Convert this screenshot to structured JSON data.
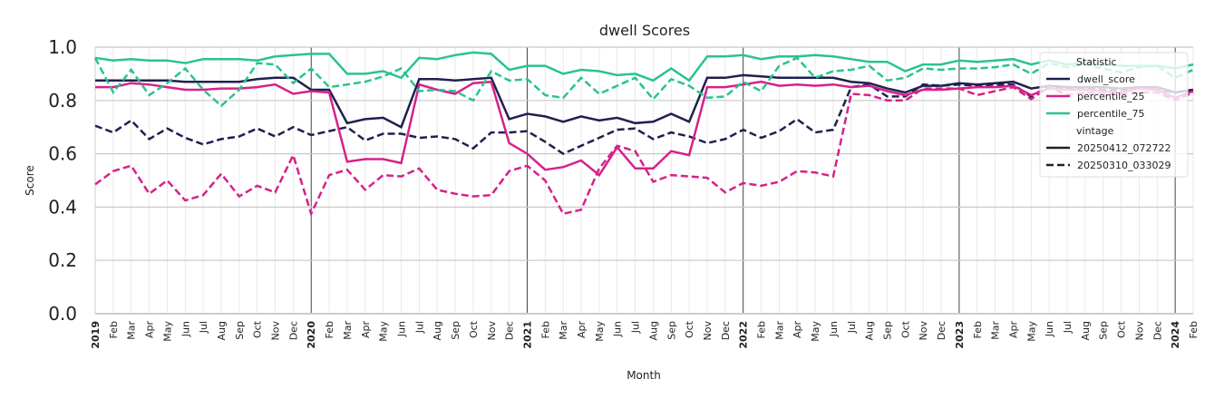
{
  "chart_data": {
    "type": "line",
    "title": "dwell Scores",
    "x_label": "Month",
    "y_label": "Score",
    "categories": [
      "2019",
      "Feb",
      "Mar",
      "Apr",
      "May",
      "Jun",
      "Jul",
      "Aug",
      "Sep",
      "Oct",
      "Nov",
      "Dec",
      "2020",
      "Feb",
      "Mar",
      "Apr",
      "May",
      "Jun",
      "Jul",
      "Aug",
      "Sep",
      "Oct",
      "Nov",
      "Dec",
      "2021",
      "Feb",
      "Mar",
      "Apr",
      "May",
      "Jun",
      "Jul",
      "Aug",
      "Sep",
      "Oct",
      "Nov",
      "Dec",
      "2022",
      "Feb",
      "Mar",
      "Apr",
      "May",
      "Jun",
      "Jul",
      "Aug",
      "Sep",
      "Oct",
      "Nov",
      "Dec",
      "2023",
      "Feb",
      "Mar",
      "Apr",
      "May",
      "Jun",
      "Jul",
      "Aug",
      "Sep",
      "Oct",
      "Nov",
      "Dec",
      "2024",
      "Feb"
    ],
    "ylim": [
      0,
      1
    ],
    "yticks": [
      {
        "value": 0,
        "label": "0.0"
      },
      {
        "value": 0.2,
        "label": "0.2"
      },
      {
        "value": 0.4,
        "label": "0.4"
      },
      {
        "value": 0.6,
        "label": "0.6"
      },
      {
        "value": 0.8,
        "label": "0.8"
      },
      {
        "value": 1,
        "label": "1.0"
      }
    ],
    "grid": true,
    "legend_titles": {
      "statistic": "Statistic",
      "vintage": "vintage"
    },
    "vintages": [
      {
        "name": "20250412_072722",
        "dash": "solid"
      },
      {
        "name": "20250310_033029",
        "dash": "dashed"
      }
    ],
    "series": [
      {
        "name": "dwell_score",
        "color": "#1f2050",
        "values": [
          [
            0.875,
            0.875,
            0.875,
            0.875,
            0.875,
            0.87,
            0.87,
            0.87,
            0.87,
            0.88,
            0.885,
            0.885,
            0.84,
            0.84,
            0.715,
            0.73,
            0.735,
            0.7,
            0.88,
            0.88,
            0.875,
            0.88,
            0.885,
            0.73,
            0.75,
            0.74,
            0.72,
            0.74,
            0.725,
            0.735,
            0.715,
            0.72,
            0.75,
            0.72,
            0.885,
            0.885,
            0.895,
            0.89,
            0.885,
            0.885,
            0.885,
            0.885,
            0.87,
            0.865,
            0.845,
            0.83,
            0.855,
            0.855,
            0.865,
            0.86,
            0.865,
            0.87,
            0.845,
            0.855,
            0.85,
            0.85,
            0.85,
            0.845,
            0.85,
            0.85,
            0.83,
            0.84
          ],
          [
            0.705,
            0.68,
            0.725,
            0.655,
            0.695,
            0.66,
            0.635,
            0.655,
            0.665,
            0.695,
            0.665,
            0.7,
            0.67,
            0.685,
            0.7,
            0.65,
            0.675,
            0.675,
            0.66,
            0.665,
            0.655,
            0.62,
            0.68,
            0.68,
            0.685,
            0.645,
            0.6,
            0.63,
            0.66,
            0.69,
            0.695,
            0.655,
            0.68,
            0.665,
            0.64,
            0.655,
            0.69,
            0.66,
            0.685,
            0.73,
            0.68,
            0.69,
            0.85,
            0.86,
            0.815,
            0.815,
            0.86,
            0.855,
            0.86,
            0.855,
            0.86,
            0.86,
            0.815,
            0.855,
            0.845,
            0.845,
            0.84,
            0.84,
            0.845,
            0.84,
            0.83,
            0.84
          ]
        ]
      },
      {
        "name": "percentile_25",
        "color": "#d6218a",
        "values": [
          [
            0.85,
            0.85,
            0.865,
            0.86,
            0.85,
            0.84,
            0.84,
            0.845,
            0.845,
            0.85,
            0.86,
            0.825,
            0.835,
            0.83,
            0.57,
            0.58,
            0.58,
            0.565,
            0.86,
            0.84,
            0.825,
            0.865,
            0.87,
            0.64,
            0.6,
            0.54,
            0.55,
            0.575,
            0.52,
            0.625,
            0.545,
            0.545,
            0.61,
            0.595,
            0.85,
            0.85,
            0.86,
            0.87,
            0.855,
            0.86,
            0.855,
            0.86,
            0.85,
            0.855,
            0.835,
            0.82,
            0.84,
            0.84,
            0.845,
            0.85,
            0.85,
            0.855,
            0.82,
            0.845,
            0.84,
            0.84,
            0.835,
            0.83,
            0.845,
            0.84,
            0.81,
            0.835
          ],
          [
            0.485,
            0.535,
            0.555,
            0.45,
            0.5,
            0.425,
            0.445,
            0.525,
            0.44,
            0.48,
            0.455,
            0.595,
            0.375,
            0.52,
            0.54,
            0.465,
            0.52,
            0.515,
            0.545,
            0.465,
            0.45,
            0.44,
            0.445,
            0.535,
            0.555,
            0.5,
            0.375,
            0.39,
            0.545,
            0.63,
            0.61,
            0.495,
            0.52,
            0.515,
            0.51,
            0.455,
            0.49,
            0.48,
            0.495,
            0.535,
            0.53,
            0.515,
            0.825,
            0.82,
            0.8,
            0.8,
            0.845,
            0.845,
            0.845,
            0.82,
            0.835,
            0.85,
            0.805,
            0.85,
            0.82,
            0.83,
            0.825,
            0.825,
            0.83,
            0.83,
            0.8,
            0.83
          ]
        ]
      },
      {
        "name": "percentile_75",
        "color": "#2ac38e",
        "values": [
          [
            0.96,
            0.95,
            0.955,
            0.95,
            0.95,
            0.94,
            0.955,
            0.955,
            0.955,
            0.95,
            0.965,
            0.97,
            0.975,
            0.975,
            0.9,
            0.9,
            0.91,
            0.885,
            0.96,
            0.955,
            0.97,
            0.98,
            0.975,
            0.915,
            0.93,
            0.93,
            0.9,
            0.915,
            0.91,
            0.895,
            0.9,
            0.875,
            0.92,
            0.875,
            0.965,
            0.965,
            0.97,
            0.955,
            0.965,
            0.965,
            0.97,
            0.965,
            0.955,
            0.945,
            0.945,
            0.91,
            0.935,
            0.935,
            0.95,
            0.945,
            0.95,
            0.955,
            0.935,
            0.95,
            0.935,
            0.94,
            0.935,
            0.93,
            0.93,
            0.93,
            0.92,
            0.935
          ],
          [
            0.96,
            0.83,
            0.915,
            0.82,
            0.865,
            0.92,
            0.84,
            0.78,
            0.84,
            0.94,
            0.935,
            0.865,
            0.92,
            0.85,
            0.86,
            0.87,
            0.89,
            0.92,
            0.835,
            0.84,
            0.835,
            0.8,
            0.91,
            0.875,
            0.88,
            0.82,
            0.81,
            0.885,
            0.825,
            0.855,
            0.885,
            0.805,
            0.88,
            0.855,
            0.81,
            0.815,
            0.87,
            0.835,
            0.93,
            0.96,
            0.885,
            0.91,
            0.915,
            0.93,
            0.875,
            0.885,
            0.92,
            0.915,
            0.92,
            0.92,
            0.925,
            0.935,
            0.9,
            0.94,
            0.925,
            0.935,
            0.92,
            0.905,
            0.925,
            0.93,
            0.885,
            0.915
          ]
        ]
      }
    ]
  }
}
